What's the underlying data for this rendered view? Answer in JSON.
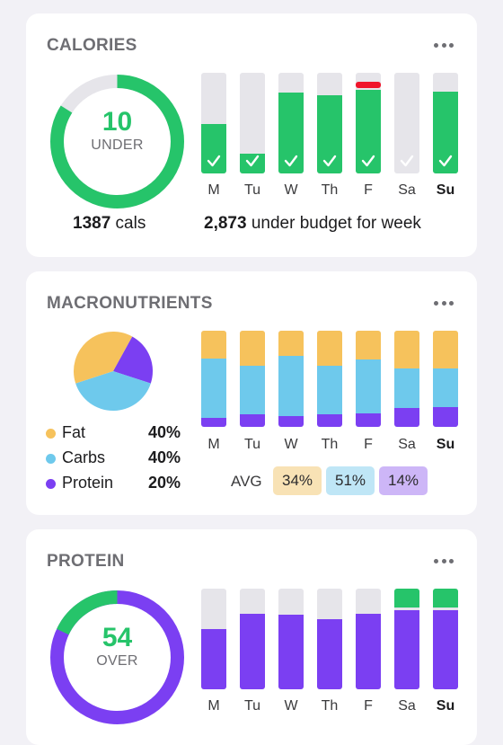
{
  "days": [
    "M",
    "Tu",
    "W",
    "Th",
    "F",
    "Sa",
    "Su"
  ],
  "calories": {
    "title": "CALORIES",
    "ring_value": "10",
    "ring_label": "UNDER",
    "ring_fraction": 0.84,
    "today_amount": "1387",
    "today_unit": " cals",
    "week_amount": "2,873",
    "week_text": " under budget for week",
    "day_fill": [
      0.49,
      0.2,
      0.8,
      0.78,
      0.83,
      0,
      0.81
    ],
    "day_checked": [
      true,
      true,
      true,
      true,
      true,
      true,
      true
    ],
    "day_over": [
      false,
      false,
      false,
      false,
      true,
      false,
      false
    ]
  },
  "macros": {
    "title": "MACRONUTRIENTS",
    "legend": [
      {
        "name": "Fat",
        "value": "40%",
        "color": "#f6c25c"
      },
      {
        "name": "Carbs",
        "value": "40%",
        "color": "#6ec9ec"
      },
      {
        "name": "Protein",
        "value": "20%",
        "color": "#7b3ff2"
      }
    ],
    "avg_label": "AVG",
    "avg": [
      {
        "value": "34%",
        "bg": "#f8e2b5"
      },
      {
        "value": "51%",
        "bg": "#bfe6f6"
      },
      {
        "value": "14%",
        "bg": "#cdb6f7"
      }
    ],
    "daily": [
      {
        "fat": 0.29,
        "carbs": 0.62,
        "protein": 0.09
      },
      {
        "fat": 0.36,
        "carbs": 0.51,
        "protein": 0.13
      },
      {
        "fat": 0.26,
        "carbs": 0.63,
        "protein": 0.11
      },
      {
        "fat": 0.36,
        "carbs": 0.51,
        "protein": 0.13
      },
      {
        "fat": 0.3,
        "carbs": 0.56,
        "protein": 0.14
      },
      {
        "fat": 0.39,
        "carbs": 0.41,
        "protein": 0.2
      },
      {
        "fat": 0.39,
        "carbs": 0.4,
        "protein": 0.21
      }
    ]
  },
  "protein": {
    "title": "PROTEIN",
    "ring_value": "54",
    "ring_label": "OVER",
    "ring_fraction": 0.18,
    "day_fill": [
      0.6,
      1.0,
      0.74,
      0.7,
      1.0,
      1.0,
      1.0
    ],
    "day_over": [
      0,
      0,
      0,
      0,
      0,
      0.21,
      0.21
    ]
  },
  "colors": {
    "green": "#26c46a",
    "purple": "#7b3ff2",
    "track": "#e6e5ea",
    "over_red": "#f0152b",
    "yellow": "#f6c25c",
    "blue": "#6ec9ec"
  },
  "icons": {
    "more": "more-horizontal-icon",
    "check": "checkmark-icon"
  }
}
